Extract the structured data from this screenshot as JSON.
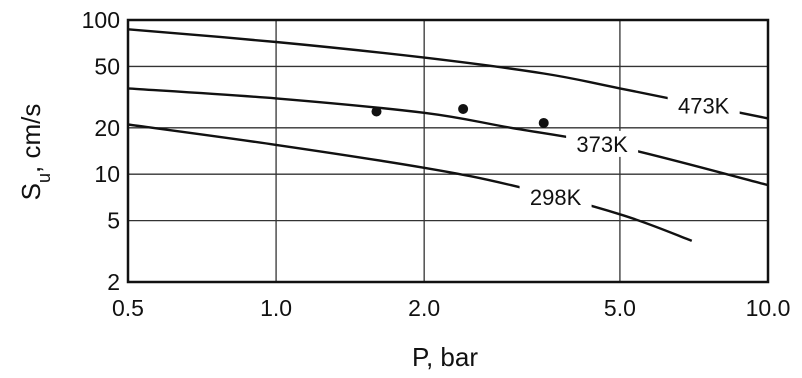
{
  "chart_data": {
    "type": "line",
    "xscale": "log",
    "yscale": "log",
    "xlim": [
      0.5,
      10.0
    ],
    "ylim": [
      2,
      100
    ],
    "grid": true,
    "xlabel": "P, bar",
    "ylabel_main": "S",
    "ylabel_sub": "u",
    "ylabel_unit": ", cm/s",
    "x_ticks": [
      {
        "value": 0.5,
        "label": "0.5"
      },
      {
        "value": 1.0,
        "label": "1.0"
      },
      {
        "value": 2.0,
        "label": "2.0"
      },
      {
        "value": 5.0,
        "label": "5.0"
      },
      {
        "value": 10.0,
        "label": "10.0"
      }
    ],
    "y_ticks": [
      {
        "value": 2,
        "label": "2"
      },
      {
        "value": 5,
        "label": "5"
      },
      {
        "value": 10,
        "label": "10"
      },
      {
        "value": 20,
        "label": "20"
      },
      {
        "value": 50,
        "label": "50"
      },
      {
        "value": 100,
        "label": "100"
      }
    ],
    "series": [
      {
        "name": "473K",
        "x": [
          0.5,
          1.0,
          2.0,
          3.5,
          5.0,
          10.0
        ],
        "y": [
          87,
          72,
          57,
          45,
          36,
          23
        ]
      },
      {
        "name": "373K",
        "x": [
          0.5,
          1.0,
          2.0,
          3.0,
          5.0,
          10.0
        ],
        "y": [
          36,
          31,
          25,
          20,
          15,
          8.5
        ]
      },
      {
        "name": "298K",
        "x": [
          0.5,
          1.0,
          2.0,
          3.0,
          5.0,
          7.0
        ],
        "y": [
          21,
          15.5,
          11,
          8.5,
          5.5,
          3.7
        ]
      }
    ],
    "points": [
      {
        "x": 1.6,
        "y": 25.5
      },
      {
        "x": 2.4,
        "y": 26.5
      },
      {
        "x": 3.5,
        "y": 21.5
      }
    ]
  }
}
